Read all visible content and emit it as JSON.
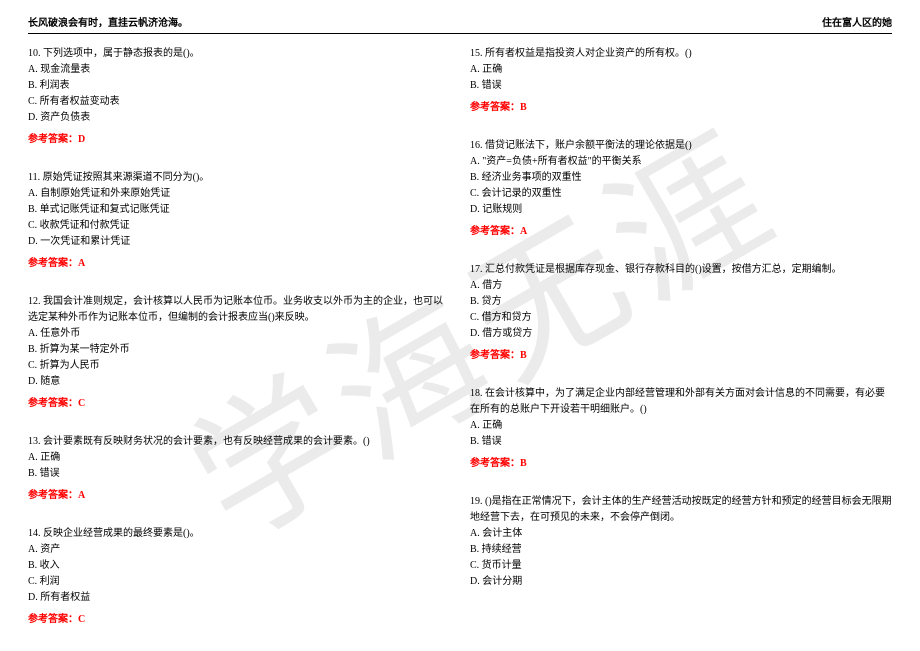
{
  "header": {
    "left": "长风破浪会有时，直挂云帆济沧海。",
    "right": "住在富人区的她"
  },
  "watermark": "学海无涯",
  "answer_label_prefix": "参考答案：",
  "left_questions": [
    {
      "stem": "10. 下列选项中，属于静态报表的是()。",
      "opts": [
        "A. 现金流量表",
        "B. 利润表",
        "C. 所有者权益变动表",
        "D. 资产负债表"
      ],
      "ans": "D"
    },
    {
      "stem": "11. 原始凭证按照其来源渠道不同分为()。",
      "opts": [
        "A. 自制原始凭证和外来原始凭证",
        "B. 单式记账凭证和复式记账凭证",
        "C. 收款凭证和付款凭证",
        "D. 一次凭证和累计凭证"
      ],
      "ans": "A"
    },
    {
      "stem": "12. 我国会计准则规定，会计核算以人民币为记账本位币。业务收支以外币为主的企业，也可以选定某种外币作为记账本位币，但编制的会计报表应当()来反映。",
      "opts": [
        "A. 任意外币",
        "B. 折算为某一特定外币",
        "C. 折算为人民币",
        "D. 随意"
      ],
      "ans": "C"
    },
    {
      "stem": "13. 会计要素既有反映财务状况的会计要素，也有反映经营成果的会计要素。()",
      "opts": [
        "A. 正确",
        "B. 错误"
      ],
      "ans": "A"
    },
    {
      "stem": "14. 反映企业经营成果的最终要素是()。",
      "opts": [
        "A. 资产",
        "B. 收入",
        "C. 利润",
        "D. 所有者权益"
      ],
      "ans": "C"
    }
  ],
  "right_questions": [
    {
      "stem": "15. 所有者权益是指投资人对企业资产的所有权。()",
      "opts": [
        "A. 正确",
        "B. 错误"
      ],
      "ans": "B"
    },
    {
      "stem": "16. 借贷记账法下，账户余额平衡法的理论依据是()",
      "opts": [
        "A. \"资产=负债+所有者权益\"的平衡关系",
        "B. 经济业务事项的双重性",
        "C. 会计记录的双重性",
        "D. 记账规则"
      ],
      "ans": "A"
    },
    {
      "stem": "17. 汇总付款凭证是根据库存现金、银行存款科目的()设置，按借方汇总，定期编制。",
      "opts": [
        "A. 借方",
        "B. 贷方",
        "C. 借方和贷方",
        "D. 借方或贷方"
      ],
      "ans": "B"
    },
    {
      "stem": "18. 在会计核算中，为了满足企业内部经营管理和外部有关方面对会计信息的不同需要，有必要在所有的总账户下开设若干明细账户。()",
      "opts": [
        "A. 正确",
        "B. 错误"
      ],
      "ans": "B"
    },
    {
      "stem": "19. ()是指在正常情况下，会计主体的生产经营活动按既定的经营方针和预定的经营目标会无限期地经营下去，在可预见的未来，不会停产倒闭。",
      "opts": [
        "A. 会计主体",
        "B. 持续经营",
        "C. 货币计量",
        "D. 会计分期"
      ],
      "ans": ""
    }
  ]
}
